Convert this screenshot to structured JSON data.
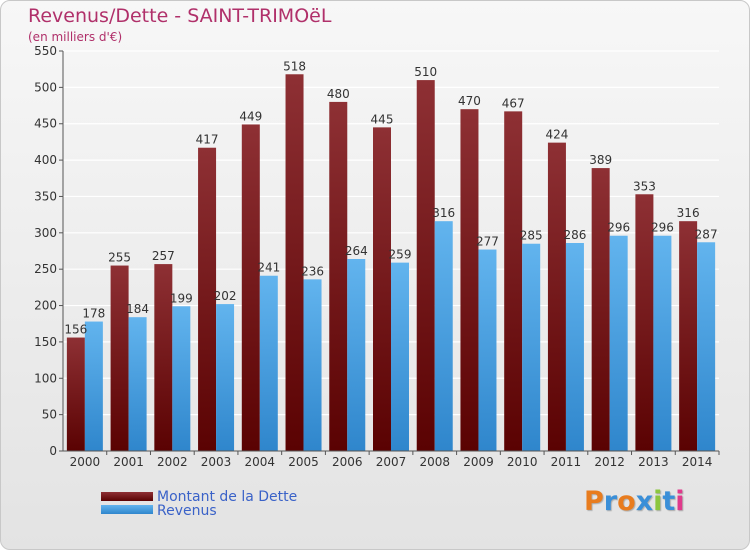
{
  "title": "Revenus/Dette - SAINT-TRIMOëL",
  "subtitle": "(en milliers d'€)",
  "legend": [
    {
      "label": "Montant de la Dette",
      "color": "#7a1818"
    },
    {
      "label": "Revenus",
      "color": "#4aa0e4"
    }
  ],
  "logo": {
    "text": "Proxiti",
    "colors": [
      "#e87c1e",
      "#3a8fd8",
      "#e87c1e",
      "#3a8fd8",
      "#8cc63f",
      "#3a8fd8",
      "#e03a8c"
    ]
  },
  "colors": {
    "debt_top": "#8e3034",
    "debt_bottom": "#5a0202",
    "rev_top": "#62b4ee",
    "rev_bottom": "#2f86cc",
    "title": "#b0306a",
    "grid": "#ffffff",
    "axis": "#555555",
    "text": "#333333"
  },
  "chart_data": {
    "type": "bar",
    "title": "Revenus/Dette - SAINT-TRIMOëL",
    "subtitle": "(en milliers d'€)",
    "xlabel": "",
    "ylabel": "",
    "ylim": [
      0,
      550
    ],
    "yticks": [
      0,
      50,
      100,
      150,
      200,
      250,
      300,
      350,
      400,
      450,
      500,
      550
    ],
    "grid": true,
    "legend_position": "bottom-left",
    "categories": [
      "2000",
      "2001",
      "2002",
      "2003",
      "2004",
      "2005",
      "2006",
      "2007",
      "2008",
      "2009",
      "2010",
      "2011",
      "2012",
      "2013",
      "2014"
    ],
    "series": [
      {
        "name": "Montant de la Dette",
        "values": [
          156,
          255,
          257,
          417,
          449,
          518,
          480,
          445,
          510,
          470,
          467,
          424,
          389,
          353,
          316
        ]
      },
      {
        "name": "Revenus",
        "values": [
          178,
          184,
          199,
          202,
          241,
          236,
          264,
          259,
          316,
          277,
          285,
          286,
          296,
          296,
          287
        ]
      }
    ]
  }
}
